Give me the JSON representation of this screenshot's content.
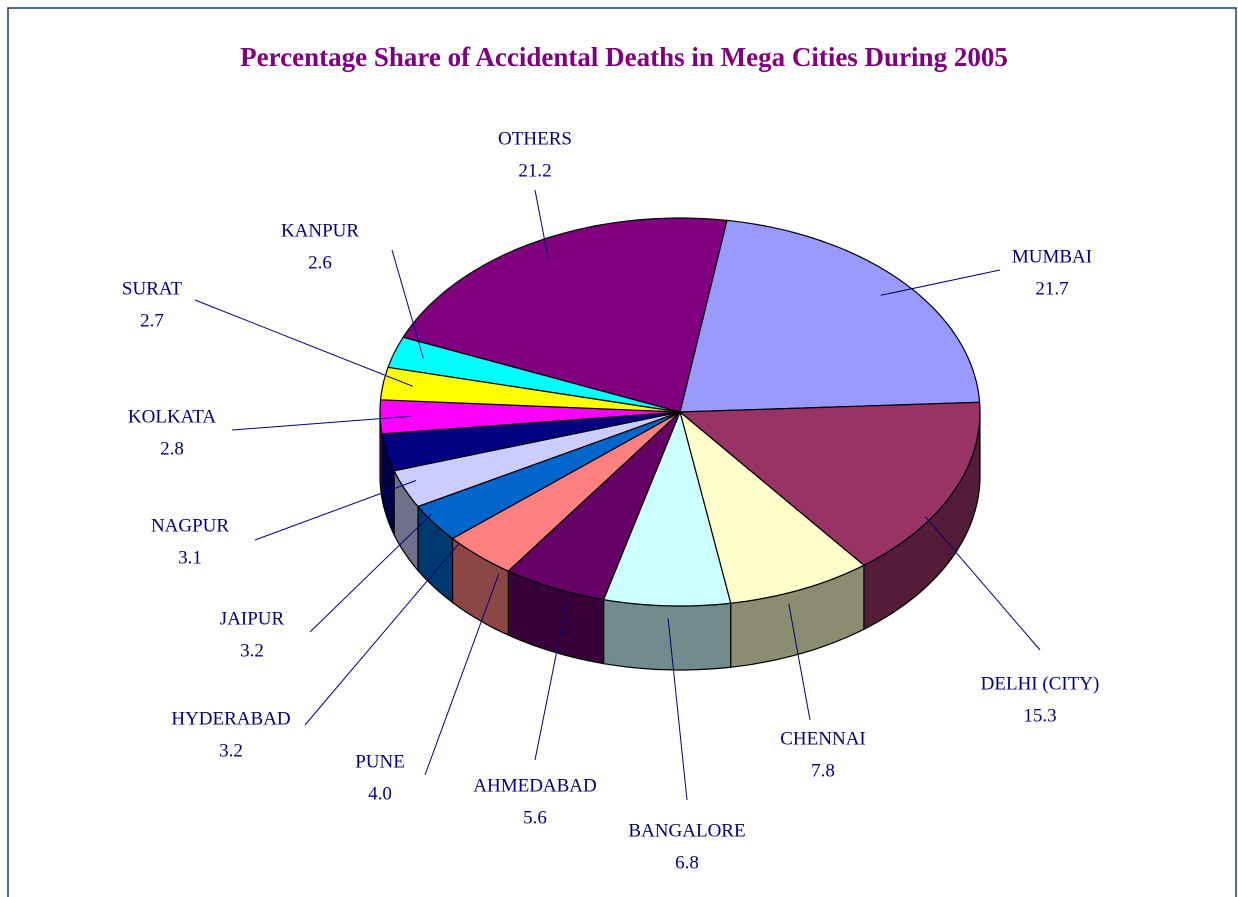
{
  "chart_data": {
    "type": "pie3d",
    "title": "Percentage Share of Accidental Deaths in Mega Cities During 2005",
    "categories": [
      "MUMBAI",
      "DELHI (CITY)",
      "CHENNAI",
      "BANGALORE",
      "AHMEDABAD",
      "PUNE",
      "HYDERABAD",
      "JAIPUR",
      "NAGPUR",
      "KOLKATA",
      "SURAT",
      "KANPUR",
      "OTHERS"
    ],
    "values": [
      21.7,
      15.3,
      7.8,
      6.8,
      5.6,
      4.0,
      3.2,
      3.2,
      3.1,
      2.8,
      2.7,
      2.6,
      21.2
    ],
    "value_labels": [
      "21.7",
      "15.3",
      "7.8",
      "6.8",
      "5.6",
      "4.0",
      "3.2",
      "3.2",
      "3.1",
      "2.8",
      "2.7",
      "2.6",
      "21.2"
    ],
    "colors": [
      "#9999ff",
      "#993366",
      "#ffffcc",
      "#ccffff",
      "#660066",
      "#ff8080",
      "#0066cc",
      "#ccccff",
      "#000080",
      "#ff00ff",
      "#ffff00",
      "#00ffff",
      "#800080"
    ]
  }
}
